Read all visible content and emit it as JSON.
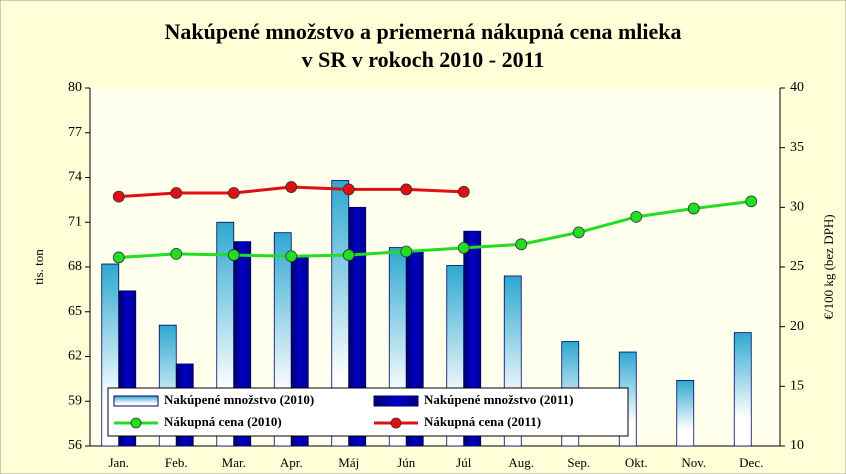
{
  "chart_data": {
    "type": "bar_line",
    "title": [
      "Nakúpené množstvo a priemerná nákupná cena mlieka",
      "v SR v rokoch 2010 - 2011"
    ],
    "ylabel": "tis. ton",
    "y2label": "€/100 kg (bez DPH)",
    "categories": [
      "Jan.",
      "Feb.",
      "Mar.",
      "Apr.",
      "Máj",
      "Jún",
      "Júl",
      "Aug.",
      "Sep.",
      "Okt.",
      "Nov.",
      "Dec."
    ],
    "series": [
      {
        "name": "Nakúpené množstvo (2010)",
        "type": "bar",
        "color": "#2ea8d0",
        "values": [
          68.2,
          64.1,
          71.0,
          70.3,
          73.8,
          69.3,
          68.1,
          67.4,
          63.0,
          62.3,
          60.4,
          63.6
        ]
      },
      {
        "name": "Nakúpené množstvo (2011)",
        "type": "bar",
        "color": "#0000c8",
        "values": [
          66.4,
          61.5,
          69.7,
          68.7,
          72.0,
          69.0,
          70.4,
          null,
          null,
          null,
          null,
          null
        ]
      },
      {
        "name": "Nákupná cena (2010)",
        "type": "line",
        "axis": "y2",
        "color": "#22dd22",
        "values": [
          25.8,
          26.1,
          26.0,
          25.9,
          26.0,
          26.3,
          26.6,
          26.9,
          27.9,
          29.2,
          29.9,
          30.5
        ]
      },
      {
        "name": "Nákupná cena (2011)",
        "type": "line",
        "axis": "y2",
        "color": "#e01010",
        "values": [
          30.9,
          31.2,
          31.2,
          31.7,
          31.5,
          31.5,
          31.3,
          null,
          null,
          null,
          null,
          null
        ]
      }
    ],
    "ylim": [
      56,
      80
    ],
    "yticks": [
      56,
      59,
      62,
      65,
      68,
      71,
      74,
      77,
      80
    ],
    "y2lim": [
      10,
      40
    ],
    "y2ticks": [
      10,
      15,
      20,
      25,
      30,
      35,
      40
    ],
    "legend": "bottom-left"
  }
}
